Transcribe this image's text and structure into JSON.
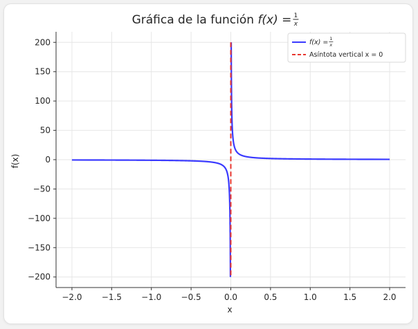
{
  "chart_data": {
    "type": "line",
    "title": "Gráfica de la función f(x) = 1/x",
    "title_parts": {
      "prefix": "Gráfica de la función ",
      "func": "f(x) = ",
      "num": "1",
      "den": "x"
    },
    "xlabel": "x",
    "ylabel": "f(x)",
    "xlim": [
      -2.2,
      2.2
    ],
    "ylim": [
      -218,
      218
    ],
    "xticks": [
      -2.0,
      -1.5,
      -1.0,
      -0.5,
      0.0,
      0.5,
      1.0,
      1.5,
      2.0
    ],
    "xtick_labels": [
      "−2.0",
      "−1.5",
      "−1.0",
      "−0.5",
      "0.0",
      "0.5",
      "1.0",
      "1.5",
      "2.0"
    ],
    "yticks": [
      -200,
      -150,
      -100,
      -50,
      0,
      50,
      100,
      150,
      200
    ],
    "ytick_labels": [
      "−200",
      "−150",
      "−100",
      "−50",
      "0",
      "50",
      "100",
      "150",
      "200"
    ],
    "grid": true,
    "legend_position": "top-right",
    "series": [
      {
        "name": "f(x) = 1/x",
        "legend_parts": {
          "func": "f(x) = ",
          "num": "1",
          "den": "x"
        },
        "color": "#3a3aff",
        "style": "solid",
        "function": "1/x",
        "x_range": [
          -2.0,
          2.0
        ],
        "y_clip": [
          -200,
          200
        ]
      },
      {
        "name": "Asíntota vertical x = 0",
        "legend_label": "Asíntota vertical x = 0",
        "color": "#e8362e",
        "style": "dashed",
        "x": 0,
        "y_range": [
          -200,
          200
        ]
      }
    ]
  }
}
